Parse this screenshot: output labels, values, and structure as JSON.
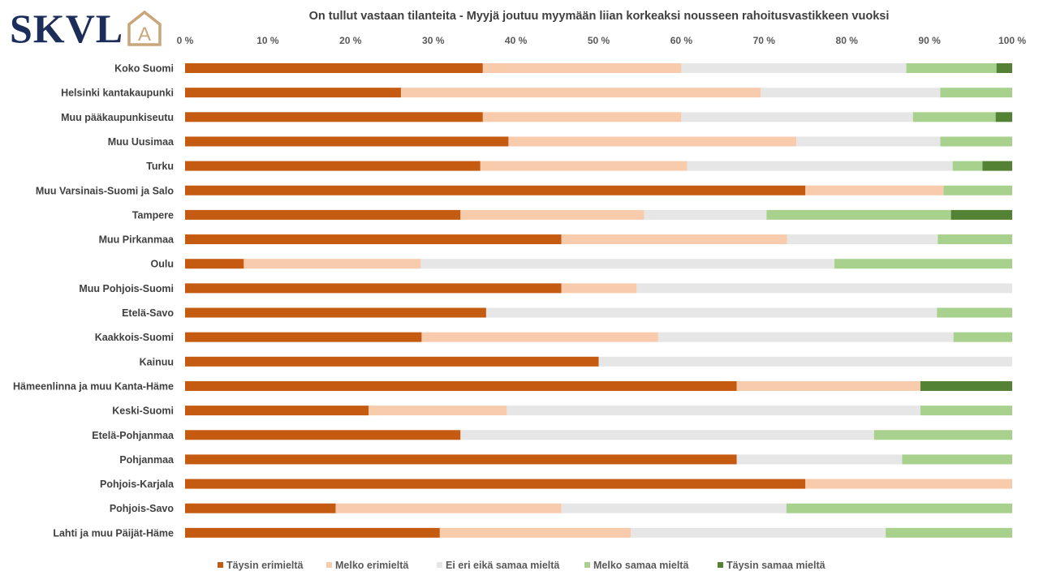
{
  "logo": {
    "text": "SKVL",
    "mark": "A"
  },
  "colors": {
    "Täysin erimieltä": "#c55a11",
    "Melko erimieltä": "#f8cbad",
    "Ei eri eikä samaa mieltä": "#e7e6e6",
    "Melko samaa mieltä": "#a9d18e",
    "Täysin samaa mieltä": "#548235"
  },
  "chart_data": {
    "type": "bar",
    "orientation": "horizontal",
    "stacked": "percent",
    "title": "On tullut vastaan tilanteita - Myyjä joutuu myymään liian korkeaksi nousseen rahoitusvastikkeen vuoksi",
    "xlim": [
      0,
      100
    ],
    "x_ticks": [
      "0 %",
      "10 %",
      "20 %",
      "30 %",
      "40 %",
      "50 %",
      "60 %",
      "70 %",
      "80 %",
      "90 %",
      "100 %"
    ],
    "legend_position": "bottom",
    "grid": false,
    "categories": [
      "Koko Suomi",
      "Helsinki kantakaupunki",
      "Muu pääkaupunkiseutu",
      "Muu Uusimaa",
      "Turku",
      "Muu Varsinais-Suomi ja Salo",
      "Tampere",
      "Muu Pirkanmaa",
      "Oulu",
      "Muu Pohjois-Suomi",
      "Etelä-Savo",
      "Kaakkois-Suomi",
      "Kainuu",
      "Hämeenlinna ja muu Kanta-Häme",
      "Keski-Suomi",
      "Etelä-Pohjanmaa",
      "Pohjanmaa",
      "Pohjois-Karjala",
      "Pohjois-Savo",
      "Lahti ja muu Päijät-Häme"
    ],
    "series": [
      {
        "name": "Täysin erimieltä",
        "values": [
          36.0,
          26.1,
          36.0,
          39.1,
          35.7,
          75.0,
          33.3,
          45.5,
          7.1,
          45.5,
          36.4,
          28.6,
          50.0,
          66.7,
          22.2,
          33.3,
          66.7,
          75.0,
          18.2,
          30.8
        ]
      },
      {
        "name": "Melko erimieltä",
        "values": [
          24.0,
          43.5,
          24.0,
          34.8,
          25.0,
          16.7,
          22.2,
          27.3,
          21.4,
          9.1,
          0,
          28.6,
          0,
          22.2,
          16.7,
          0,
          0,
          25.0,
          27.3,
          23.1
        ]
      },
      {
        "name": "Ei eri eikä samaa mieltä",
        "values": [
          27.2,
          21.7,
          28.0,
          17.4,
          32.1,
          0,
          14.8,
          18.2,
          50.0,
          45.4,
          54.5,
          35.7,
          50.0,
          0,
          50.0,
          50.0,
          20.0,
          0,
          27.2,
          30.8
        ]
      },
      {
        "name": "Melko samaa mieltä",
        "values": [
          10.9,
          8.7,
          10.0,
          8.7,
          3.6,
          8.3,
          22.3,
          9.0,
          21.5,
          0,
          9.1,
          7.1,
          0,
          0,
          11.1,
          16.7,
          13.3,
          0,
          27.3,
          15.3
        ]
      },
      {
        "name": "Täysin samaa mieltä",
        "values": [
          1.9,
          0,
          2.0,
          0,
          3.6,
          0,
          7.4,
          0,
          0,
          0,
          0,
          0,
          0,
          11.1,
          0,
          0,
          0,
          0,
          0,
          0
        ]
      }
    ]
  }
}
